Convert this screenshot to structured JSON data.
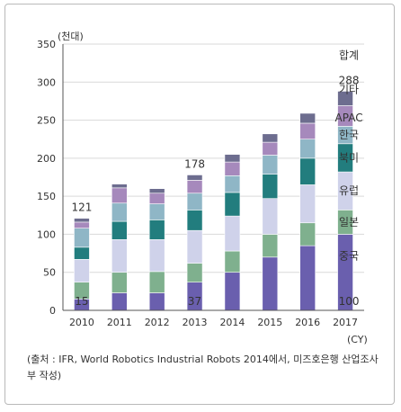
{
  "chart_data": {
    "type": "bar",
    "stacked": true,
    "ylabel": "(천대)",
    "xlabel": "(CY)",
    "ylim": [
      0,
      350
    ],
    "yticks": [
      0,
      50,
      100,
      150,
      200,
      250,
      300,
      350
    ],
    "grid": "horizontal",
    "categories": [
      "2010",
      "2011",
      "2012",
      "2013",
      "2014",
      "2015",
      "2016",
      "2017"
    ],
    "series": [
      {
        "name": "중국",
        "color": "#6a5fae",
        "values": [
          15,
          23,
          23,
          37,
          50,
          70,
          85,
          100
        ]
      },
      {
        "name": "일본",
        "color": "#7fb08e",
        "values": [
          22,
          27,
          28,
          25,
          28,
          30,
          30,
          32
        ]
      },
      {
        "name": "유럽",
        "color": "#cfd2ea",
        "values": [
          30,
          43,
          42,
          43,
          46,
          47,
          50,
          50
        ]
      },
      {
        "name": "북미",
        "color": "#227d7e",
        "values": [
          16,
          24,
          26,
          27,
          31,
          32,
          35,
          37
        ]
      },
      {
        "name": "한국",
        "color": "#8fb6c6",
        "values": [
          25,
          24,
          21,
          22,
          22,
          25,
          25,
          23
        ]
      },
      {
        "name": "APAC",
        "color": "#a689bc",
        "values": [
          8,
          20,
          14,
          17,
          18,
          17,
          21,
          27
        ]
      },
      {
        "name": "기타",
        "color": "#6d6d8f",
        "values": [
          5,
          5,
          6,
          7,
          10,
          11,
          13,
          19
        ]
      }
    ],
    "annotations": [
      {
        "text": "121",
        "category": "2010",
        "series": "total"
      },
      {
        "text": "15",
        "category": "2010",
        "series": "중국"
      },
      {
        "text": "178",
        "category": "2013",
        "series": "total"
      },
      {
        "text": "37",
        "category": "2013",
        "series": "중국"
      },
      {
        "text": "288",
        "category": "2017",
        "series": "total"
      },
      {
        "text": "100",
        "category": "2017",
        "series": "중국"
      }
    ],
    "legend_title": "합계"
  },
  "source_note": "(출처 : IFR, World Robotics Industrial Robots 2014에서, 미즈호은행 산업조사부 작성)"
}
